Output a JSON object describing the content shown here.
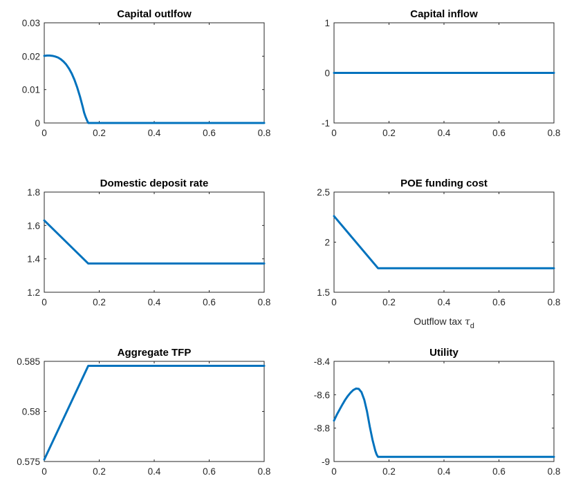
{
  "figure": {
    "xlabel_panel_index": 3
  },
  "chart_data": [
    {
      "type": "line",
      "title": "Capital outlfow",
      "xlabel": "",
      "ylabel": "",
      "xlim": [
        0,
        0.8
      ],
      "ylim": [
        0,
        0.03
      ],
      "xticks": [
        0,
        0.2,
        0.4,
        0.6,
        0.8
      ],
      "yticks": [
        0,
        0.01,
        0.02,
        0.03
      ],
      "xtick_labels": [
        "0",
        "0.2",
        "0.4",
        "0.6",
        "0.8"
      ],
      "ytick_labels": [
        "0",
        "0.01",
        "0.02",
        "0.03"
      ],
      "grid": false,
      "series": [
        {
          "color": "#0072BD",
          "x": [
            0,
            0.01,
            0.02,
            0.03,
            0.04,
            0.05,
            0.06,
            0.07,
            0.08,
            0.09,
            0.1,
            0.11,
            0.12,
            0.13,
            0.14,
            0.145,
            0.15,
            0.155,
            0.16,
            0.2,
            0.4,
            0.6,
            0.8
          ],
          "y": [
            0.0201,
            0.0202,
            0.0202,
            0.0201,
            0.0199,
            0.0196,
            0.0191,
            0.0184,
            0.0175,
            0.0163,
            0.0148,
            0.0129,
            0.0106,
            0.0079,
            0.0048,
            0.0031,
            0.0019,
            0.0009,
            0,
            0,
            0,
            0,
            0
          ]
        }
      ]
    },
    {
      "type": "line",
      "title": "Capital inflow",
      "xlabel": "",
      "ylabel": "",
      "xlim": [
        0,
        0.8
      ],
      "ylim": [
        -1,
        1
      ],
      "xticks": [
        0,
        0.2,
        0.4,
        0.6,
        0.8
      ],
      "yticks": [
        -1,
        0,
        1
      ],
      "xtick_labels": [
        "0",
        "0.2",
        "0.4",
        "0.6",
        "0.8"
      ],
      "ytick_labels": [
        "-1",
        "0",
        "1"
      ],
      "grid": false,
      "series": [
        {
          "color": "#0072BD",
          "x": [
            0,
            0.8
          ],
          "y": [
            0,
            0
          ]
        }
      ]
    },
    {
      "type": "line",
      "title": "Domestic deposit rate",
      "xlabel": "",
      "ylabel": "",
      "xlim": [
        0,
        0.8
      ],
      "ylim": [
        1.2,
        1.8
      ],
      "xticks": [
        0,
        0.2,
        0.4,
        0.6,
        0.8
      ],
      "yticks": [
        1.2,
        1.4,
        1.6,
        1.8
      ],
      "xtick_labels": [
        "0",
        "0.2",
        "0.4",
        "0.6",
        "0.8"
      ],
      "ytick_labels": [
        "1.2",
        "1.4",
        "1.6",
        "1.8"
      ],
      "grid": false,
      "series": [
        {
          "color": "#0072BD",
          "x": [
            0,
            0.16,
            0.8
          ],
          "y": [
            1.63,
            1.372,
            1.372
          ]
        }
      ]
    },
    {
      "type": "line",
      "title": "POE funding cost",
      "xlabel": "Outflow tax  τ_d",
      "ylabel": "",
      "xlim": [
        0,
        0.8
      ],
      "ylim": [
        1.5,
        2.5
      ],
      "xticks": [
        0,
        0.2,
        0.4,
        0.6,
        0.8
      ],
      "yticks": [
        1.5,
        2,
        2.5
      ],
      "xtick_labels": [
        "0",
        "0.2",
        "0.4",
        "0.6",
        "0.8"
      ],
      "ytick_labels": [
        "1.5",
        "2",
        "2.5"
      ],
      "grid": false,
      "series": [
        {
          "color": "#0072BD",
          "x": [
            0,
            0.16,
            0.8
          ],
          "y": [
            2.26,
            1.74,
            1.74
          ]
        }
      ]
    },
    {
      "type": "line",
      "title": "Aggregate TFP",
      "xlabel": "",
      "ylabel": "",
      "xlim": [
        0,
        0.8
      ],
      "ylim": [
        0.575,
        0.585
      ],
      "xticks": [
        0,
        0.2,
        0.4,
        0.6,
        0.8
      ],
      "yticks": [
        0.575,
        0.58,
        0.585
      ],
      "xtick_labels": [
        "0",
        "0.2",
        "0.4",
        "0.6",
        "0.8"
      ],
      "ytick_labels": [
        "0.575",
        "0.58",
        "0.585"
      ],
      "grid": false,
      "series": [
        {
          "color": "#0072BD",
          "x": [
            0,
            0.16,
            0.8
          ],
          "y": [
            0.5752,
            0.58455,
            0.58455
          ]
        }
      ]
    },
    {
      "type": "line",
      "title": "Utility",
      "xlabel": "",
      "ylabel": "",
      "xlim": [
        0,
        0.8
      ],
      "ylim": [
        -9,
        -8.4
      ],
      "xticks": [
        0,
        0.2,
        0.4,
        0.6,
        0.8
      ],
      "yticks": [
        -9,
        -8.8,
        -8.6,
        -8.4
      ],
      "xtick_labels": [
        "0",
        "0.2",
        "0.4",
        "0.6",
        "0.8"
      ],
      "ytick_labels": [
        "-9",
        "-8.8",
        "-8.6",
        "-8.4"
      ],
      "grid": false,
      "series": [
        {
          "color": "#0072BD",
          "x": [
            0,
            0.01,
            0.02,
            0.03,
            0.04,
            0.05,
            0.06,
            0.07,
            0.08,
            0.09,
            0.1,
            0.11,
            0.12,
            0.13,
            0.14,
            0.15,
            0.155,
            0.16,
            0.2,
            0.4,
            0.6,
            0.8
          ],
          "y": [
            -8.755,
            -8.72,
            -8.69,
            -8.66,
            -8.632,
            -8.608,
            -8.588,
            -8.572,
            -8.563,
            -8.565,
            -8.585,
            -8.63,
            -8.7,
            -8.79,
            -8.87,
            -8.935,
            -8.958,
            -8.972,
            -8.972,
            -8.972,
            -8.972,
            -8.972
          ]
        }
      ]
    }
  ]
}
